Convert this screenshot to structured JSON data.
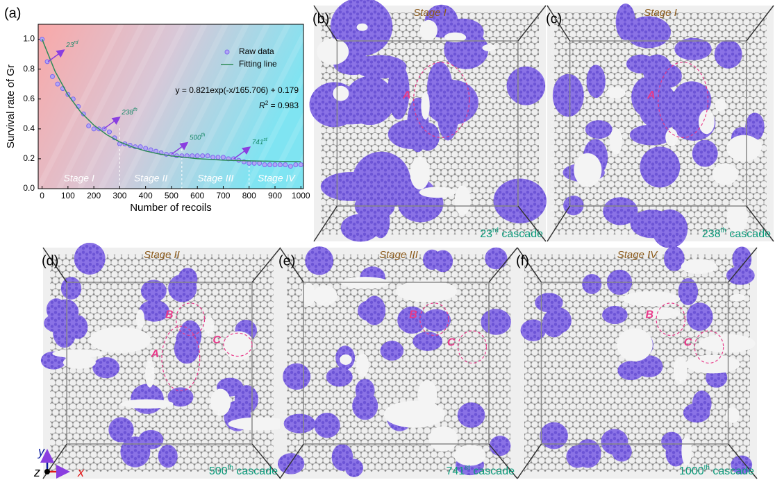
{
  "chart_data": {
    "type": "scatter",
    "panel_label": "(a)",
    "x_label": "Number of recoils",
    "y_label": "Survival rate of Gr",
    "xlim": [
      -15,
      1010
    ],
    "ylim": [
      0,
      1.1
    ],
    "xticks": [
      0,
      100,
      200,
      300,
      400,
      500,
      600,
      700,
      800,
      900,
      1000
    ],
    "yticks": [
      {
        "value": 0,
        "label": "0.0"
      },
      0.2,
      0.4,
      0.6,
      0.8,
      {
        "value": 1,
        "label": "1.0"
      }
    ],
    "series": [
      {
        "name": "Raw data",
        "color": "#7b68ee",
        "x": [
          0,
          20,
          40,
          60,
          80,
          100,
          120,
          140,
          160,
          180,
          200,
          220,
          240,
          260,
          280,
          300,
          320,
          340,
          360,
          380,
          400,
          420,
          440,
          460,
          480,
          500,
          520,
          540,
          560,
          580,
          600,
          620,
          640,
          660,
          680,
          700,
          720,
          740,
          760,
          780,
          800,
          820,
          840,
          860,
          880,
          900,
          920,
          940,
          960,
          980,
          1000
        ],
        "values": [
          1.0,
          0.85,
          0.75,
          0.7,
          0.67,
          0.63,
          0.6,
          0.55,
          0.5,
          0.42,
          0.4,
          0.4,
          0.4,
          0.38,
          0.34,
          0.3,
          0.3,
          0.29,
          0.28,
          0.28,
          0.27,
          0.26,
          0.25,
          0.24,
          0.23,
          0.23,
          0.22,
          0.22,
          0.22,
          0.22,
          0.22,
          0.22,
          0.22,
          0.21,
          0.21,
          0.21,
          0.2,
          0.2,
          0.19,
          0.18,
          0.17,
          0.17,
          0.17,
          0.16,
          0.16,
          0.16,
          0.16,
          0.16,
          0.15,
          0.16,
          0.16
        ]
      },
      {
        "name": "Fitting line",
        "color": "#2e8b57",
        "type": "line",
        "x": [
          0,
          50,
          100,
          150,
          200,
          250,
          300,
          350,
          400,
          450,
          500,
          600,
          700,
          800,
          900,
          1000
        ],
        "values": [
          1.0,
          0.786,
          0.628,
          0.511,
          0.425,
          0.361,
          0.313,
          0.278,
          0.252,
          0.233,
          0.219,
          0.201,
          0.191,
          0.186,
          0.183,
          0.181
        ]
      }
    ],
    "equation": "y = 0.821exp(-x/165.706) + 0.179",
    "r2": {
      "symbol": "R",
      "power": "2",
      "rest": " = 0.983"
    },
    "annotations": [
      {
        "x": 23,
        "y": 0.85,
        "number": "23",
        "suffix": "rd"
      },
      {
        "x": 238,
        "y": 0.4,
        "number": "238",
        "suffix": "th"
      },
      {
        "x": 500,
        "y": 0.23,
        "number": "500",
        "suffix": "th"
      },
      {
        "x": 741,
        "y": 0.2,
        "number": "741",
        "suffix": "st"
      }
    ],
    "stage_boundaries": [
      300,
      540,
      800
    ],
    "stages": [
      "Stage I",
      "Stage II",
      "Stage III",
      "Stage IV"
    ]
  },
  "panels": [
    {
      "label": "(b)",
      "stage": "Stage I",
      "cascade": {
        "number": "23",
        "suffix": "rd",
        "word": "cascade"
      },
      "markers": [
        "A"
      ]
    },
    {
      "label": "(c)",
      "stage": "Stage I",
      "cascade": {
        "number": "238",
        "suffix": "th",
        "word": "cascade"
      },
      "markers": [
        "A"
      ]
    },
    {
      "label": "(d)",
      "stage": "Stage II",
      "cascade": {
        "number": "500",
        "suffix": "th",
        "word": "cascade"
      },
      "markers": [
        "B",
        "A",
        "C"
      ]
    },
    {
      "label": "(e)",
      "stage": "Stage III",
      "cascade": {
        "number": "741",
        "suffix": "st",
        "word": "cascade"
      },
      "markers": [
        "B",
        "C"
      ]
    },
    {
      "label": "(f)",
      "stage": "Stage IV",
      "cascade": {
        "number": "1000",
        "suffix": "th",
        "word": "cascade"
      },
      "markers": [
        "B",
        "C"
      ]
    }
  ],
  "axes_triad": {
    "x": "x",
    "y": "y",
    "z": "z"
  }
}
